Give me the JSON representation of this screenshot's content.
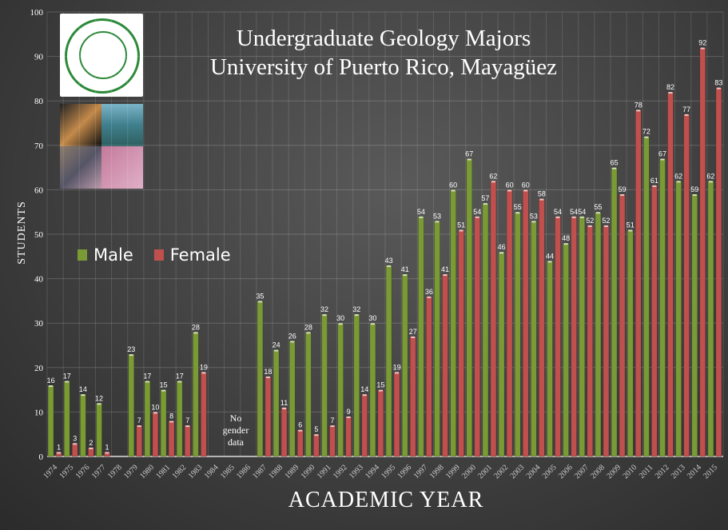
{
  "chart_data": {
    "type": "bar",
    "title": "Undergraduate Geology Majors",
    "subtitle": "University of Puerto Rico, Mayagüez",
    "xlabel": "ACADEMIC YEAR",
    "ylabel": "STUDENTS",
    "ylim": [
      0,
      100
    ],
    "yticks": [
      0,
      10,
      20,
      30,
      40,
      50,
      60,
      70,
      80,
      90,
      100
    ],
    "grid": true,
    "legend": "left-middle",
    "annotation": "No gender data",
    "categories": [
      "1974",
      "1975",
      "1976",
      "1977",
      "1978",
      "1979",
      "1980",
      "1981",
      "1982",
      "1983",
      "1984",
      "1985",
      "1986",
      "1987",
      "1988",
      "1989",
      "1990",
      "1991",
      "1992",
      "1993",
      "1994",
      "1995",
      "1996",
      "1997",
      "1998",
      "1999",
      "2000",
      "2001",
      "2002",
      "2003",
      "2004",
      "2005",
      "2006",
      "2007",
      "2008",
      "2009",
      "2010",
      "2011",
      "2012",
      "2013",
      "2014",
      "2015"
    ],
    "series": [
      {
        "name": "Male",
        "color": "#7a9a35",
        "values": [
          16,
          17,
          14,
          12,
          null,
          23,
          17,
          15,
          17,
          28,
          null,
          null,
          null,
          35,
          24,
          26,
          28,
          32,
          30,
          32,
          30,
          43,
          41,
          54,
          53,
          60,
          67,
          57,
          46,
          55,
          53,
          44,
          48,
          54,
          55,
          65,
          51,
          72,
          67,
          62,
          59,
          62
        ]
      },
      {
        "name": "Female",
        "color": "#c0504d",
        "values": [
          1,
          3,
          2,
          1,
          null,
          7,
          10,
          8,
          7,
          19,
          null,
          null,
          null,
          18,
          11,
          6,
          5,
          7,
          9,
          14,
          15,
          19,
          27,
          36,
          41,
          51,
          54,
          62,
          60,
          60,
          58,
          54,
          54,
          52,
          52,
          59,
          78,
          61,
          82,
          77,
          92,
          83
        ]
      }
    ]
  }
}
